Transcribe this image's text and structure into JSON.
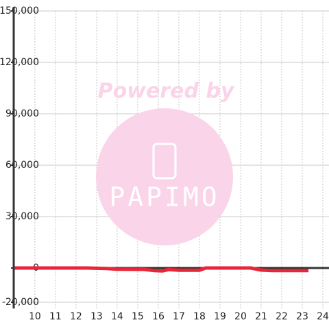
{
  "chart_data": {
    "type": "line",
    "annotations": [
      "Powered by",
      "PAPIMO"
    ],
    "xlim": [
      8.97,
      24.3
    ],
    "ylim": [
      -23600,
      150000
    ],
    "xticks": [
      10,
      11,
      12,
      13,
      14,
      15,
      16,
      17,
      18,
      19,
      20,
      21,
      22,
      23,
      24
    ],
    "yticks": [
      {
        "value": -20000,
        "label": "-20,000"
      },
      0,
      {
        "value": 30000,
        "label": "30,000"
      },
      {
        "value": 60000,
        "label": "60,000"
      },
      {
        "value": 90000,
        "label": "90,000"
      },
      {
        "value": 120000,
        "label": "120,000"
      },
      {
        "value": 150000,
        "label": "150,000"
      }
    ],
    "grid": true,
    "series": [
      {
        "color": "#e8263a",
        "x": [
          8.97,
          12.5,
          13.5,
          14,
          15.3,
          15.8,
          16.2,
          16.5,
          17,
          18,
          18.3,
          20.5,
          21,
          21.5,
          23.3
        ],
        "values": [
          0,
          0,
          -300,
          -700,
          -800,
          -1500,
          -1700,
          -900,
          -1300,
          -1300,
          0,
          0,
          -1200,
          -1500,
          -1500
        ]
      }
    ]
  }
}
